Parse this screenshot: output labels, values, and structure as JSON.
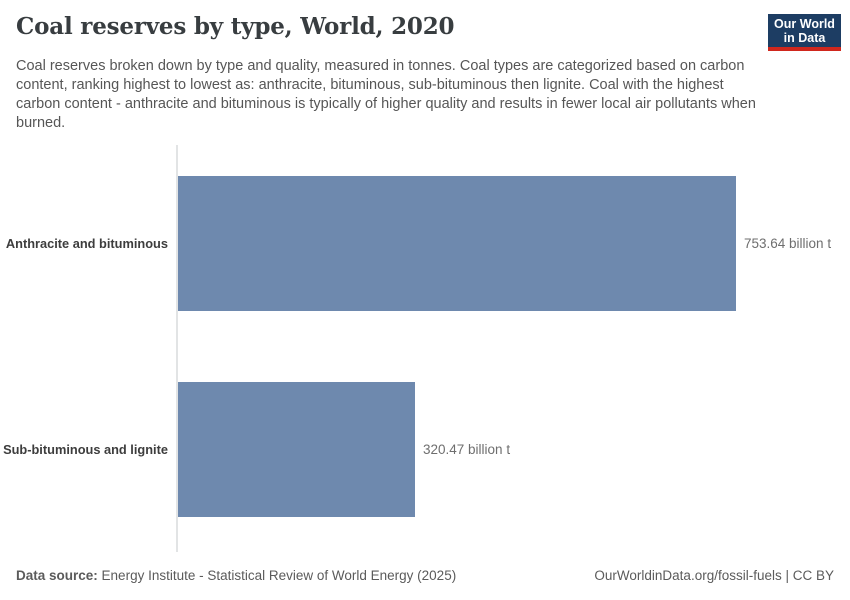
{
  "header": {
    "title": "Coal reserves by type, World, 2020",
    "subtitle": "Coal reserves broken down by type and quality, measured in tonnes. Coal types are categorized based on carbon content, ranking highest to lowest as: anthracite, bituminous, sub-bituminous then lignite. Coal with the highest carbon content - anthracite and bituminous is typically of higher quality and results in fewer local air pollutants when burned.",
    "logo": {
      "line1": "Our World",
      "line2": "in Data"
    }
  },
  "chart_data": {
    "type": "bar",
    "orientation": "horizontal",
    "title": "Coal reserves by type, World, 2020",
    "categories": [
      "Anthracite and bituminous",
      "Sub-bituminous and lignite"
    ],
    "values": [
      753.64,
      320.47
    ],
    "value_labels": [
      "753.64 billion t",
      "320.47 billion t"
    ],
    "unit": "billion t",
    "xlim": [
      0,
      753.64
    ],
    "grid": false,
    "legend": "none"
  },
  "colors": {
    "bar": "#6e89ae",
    "axis_line": "#e2e4e5",
    "logo_bg": "#1d3d63",
    "logo_accent": "#d0271d",
    "title_text": "#383d40",
    "subtitle_text": "#565656",
    "entity_label_text": "#3d3d3d",
    "value_label_text": "#6e6e6e",
    "footer_text": "#5b5b5b"
  },
  "footer": {
    "datasource_label": "Data source:",
    "datasource_value": "Energy Institute - Statistical Review of World Energy (2025)",
    "credit": "OurWorldinData.org/fossil-fuels | CC BY"
  }
}
